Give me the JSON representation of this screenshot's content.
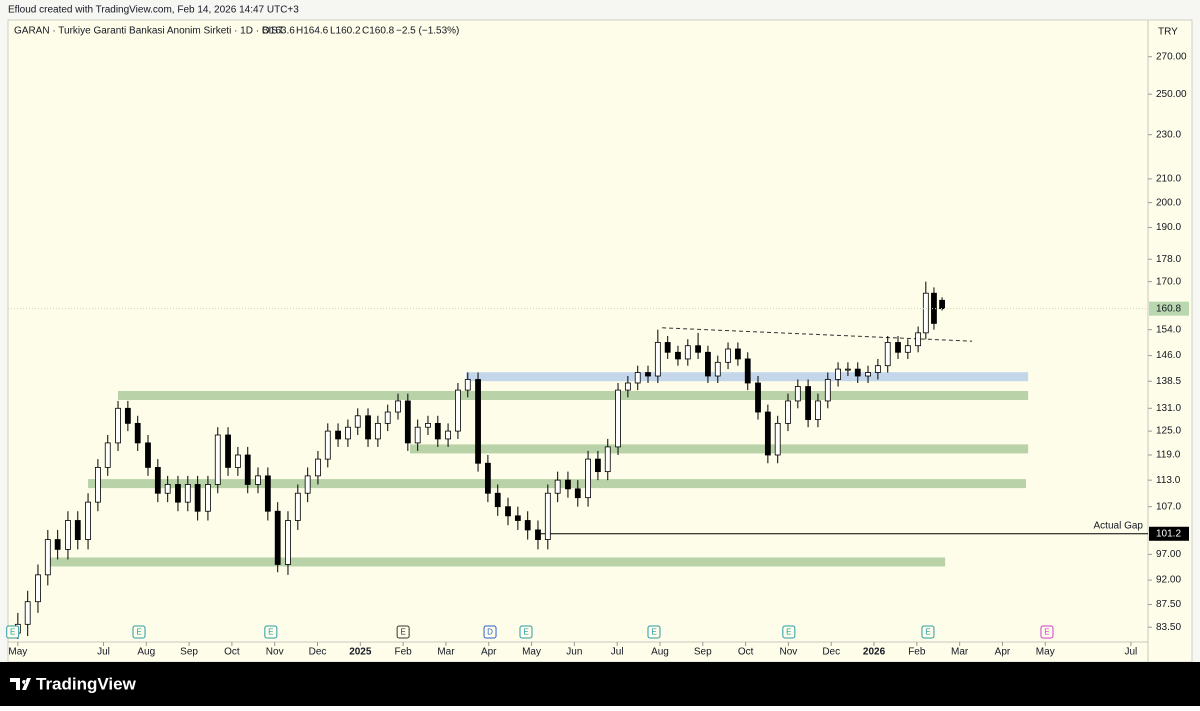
{
  "header": {
    "credit": "Efloud created with TradingView.com, Feb 14, 2026 14:47 UTC+3"
  },
  "footer": {
    "brand": "TradingView"
  },
  "chart_data": {
    "type": "candlestick",
    "legend": {
      "symbol": "GARAN · Turkiye Garanti Bankasi Anonim Sirketi · 1D · BIST",
      "open": "O163.6",
      "high": "H164.6",
      "low": "L160.2",
      "close": "C160.8",
      "change": "−2.5 (−1.53%)"
    },
    "currency": "TRY",
    "log_scale": true,
    "up_color": "#ffffff",
    "down_color": "#000000",
    "x": [
      0.0,
      0.23,
      0.47,
      0.7,
      0.93,
      1.17,
      1.4,
      1.64,
      1.87,
      2.1,
      2.34,
      2.57,
      2.8,
      3.04,
      3.27,
      3.5,
      3.74,
      3.97,
      4.2,
      4.44,
      4.67,
      4.91,
      5.14,
      5.37,
      5.61,
      5.84,
      6.07,
      6.31,
      6.54,
      6.77,
      7.01,
      7.24,
      7.48,
      7.71,
      7.94,
      8.18,
      8.41,
      8.64,
      8.88,
      9.11,
      9.34,
      9.58,
      9.81,
      10.05,
      10.28,
      10.51,
      10.75,
      10.98,
      11.21,
      11.45,
      11.68,
      11.91,
      12.15,
      12.38,
      12.61,
      12.85,
      13.08,
      13.32,
      13.55,
      13.78,
      14.02,
      14.25,
      14.48,
      14.72,
      14.95,
      15.18,
      15.42,
      15.65,
      15.89,
      16.12,
      16.35,
      16.59,
      16.82,
      17.05,
      17.29,
      17.52,
      17.75,
      17.99,
      18.22,
      18.46,
      18.69,
      18.92,
      19.16,
      19.39,
      19.62,
      19.86,
      20.09,
      20.32,
      20.56,
      20.79,
      21.03,
      21.21,
      21.4,
      21.59
    ],
    "open": [
      82.5,
      84,
      88,
      93,
      100,
      98,
      104,
      100,
      108,
      116,
      122,
      131,
      127,
      122,
      116,
      110,
      112,
      108,
      112,
      106,
      112,
      124,
      116,
      119,
      112,
      114,
      106,
      95,
      104,
      110,
      114,
      118,
      125,
      123,
      126,
      129,
      123,
      127,
      130,
      133,
      122,
      126,
      127,
      123,
      125,
      136,
      139,
      117,
      110,
      107,
      105,
      104,
      102,
      100,
      110,
      113,
      111,
      109,
      118,
      115,
      121,
      136,
      138,
      141,
      140,
      150,
      147,
      145,
      149,
      147,
      140,
      144,
      148,
      145,
      138,
      130,
      119,
      127,
      133,
      137,
      128,
      133,
      139,
      142,
      142,
      140,
      141,
      143,
      150,
      147,
      149,
      153,
      166,
      163.6
    ],
    "high": [
      86,
      90,
      95,
      102,
      102,
      106,
      106,
      110,
      118,
      124,
      133,
      133,
      129,
      124,
      118,
      114,
      114,
      114,
      114,
      114,
      126,
      126,
      121,
      121,
      116,
      116,
      108,
      106,
      112,
      116,
      120,
      127,
      127,
      128,
      131,
      131,
      129,
      132,
      135,
      135,
      128,
      129,
      129,
      127,
      138,
      141,
      141,
      119,
      112,
      109,
      107,
      106,
      104,
      112,
      115,
      115,
      113,
      120,
      120,
      123,
      138,
      140,
      143,
      143,
      154,
      152,
      149,
      151,
      153,
      149,
      146,
      150,
      150,
      147,
      140,
      132,
      129,
      135,
      139,
      139,
      135,
      141,
      144,
      144,
      144,
      143,
      145,
      152,
      152,
      151,
      155,
      170,
      168,
      164.6
    ],
    "low": [
      81.5,
      82,
      86,
      91,
      96,
      96,
      98,
      98,
      106,
      114,
      120,
      125,
      120,
      114,
      108,
      108,
      106,
      106,
      104,
      104,
      110,
      114,
      114,
      110,
      110,
      104,
      93.5,
      93,
      102,
      108,
      112,
      116,
      121,
      121,
      124,
      121,
      121,
      125,
      128,
      120,
      120,
      124,
      121,
      121,
      123,
      134,
      115,
      108,
      105,
      103,
      102,
      100,
      98,
      98,
      108,
      109,
      107,
      107,
      113,
      113,
      119,
      134,
      136,
      138,
      138,
      145,
      143,
      143,
      145,
      138,
      138,
      142,
      143,
      136,
      128,
      117,
      117,
      125,
      131,
      126,
      126,
      131,
      137,
      140,
      138,
      138,
      139,
      141,
      145,
      145,
      147,
      151,
      154,
      160.2
    ],
    "close": [
      84,
      88,
      93,
      100,
      98,
      104,
      100,
      108,
      116,
      122,
      131,
      127,
      122,
      116,
      110,
      112,
      108,
      112,
      106,
      112,
      124,
      116,
      119,
      112,
      114,
      106,
      95,
      104,
      110,
      114,
      118,
      125,
      123,
      126,
      129,
      123,
      127,
      130,
      133,
      122,
      126,
      127,
      123,
      125,
      136,
      139,
      117,
      110,
      107,
      105,
      104,
      102,
      100,
      110,
      113,
      111,
      109,
      118,
      115,
      121,
      136,
      138,
      141,
      140,
      150,
      147,
      145,
      149,
      147,
      140,
      144,
      148,
      145,
      138,
      130,
      119,
      127,
      133,
      137,
      128,
      133,
      139,
      142,
      142,
      140,
      141,
      143,
      150,
      147,
      149,
      153,
      166,
      156,
      160.8
    ],
    "xlim": [
      -0.23,
      26.4
    ],
    "ylim": [
      81,
      290
    ],
    "xticks": [
      {
        "value": 0,
        "label": "May"
      },
      {
        "value": 2,
        "label": "Jul"
      },
      {
        "value": 3,
        "label": "Aug"
      },
      {
        "value": 4,
        "label": "Sep"
      },
      {
        "value": 5,
        "label": "Oct"
      },
      {
        "value": 6,
        "label": "Nov"
      },
      {
        "value": 7,
        "label": "Dec"
      },
      {
        "value": 8,
        "label": "2025"
      },
      {
        "value": 9,
        "label": "Feb"
      },
      {
        "value": 10,
        "label": "Mar"
      },
      {
        "value": 11,
        "label": "Apr"
      },
      {
        "value": 12,
        "label": "May"
      },
      {
        "value": 13,
        "label": "Jun"
      },
      {
        "value": 14,
        "label": "Jul"
      },
      {
        "value": 15,
        "label": "Aug"
      },
      {
        "value": 16,
        "label": "Sep"
      },
      {
        "value": 17,
        "label": "Oct"
      },
      {
        "value": 18,
        "label": "Nov"
      },
      {
        "value": 19,
        "label": "Dec"
      },
      {
        "value": 20,
        "label": "2026"
      },
      {
        "value": 21,
        "label": "Feb"
      },
      {
        "value": 22,
        "label": "Mar"
      },
      {
        "value": 23,
        "label": "Apr"
      },
      {
        "value": 24,
        "label": "May"
      },
      {
        "value": 26,
        "label": "Jul"
      }
    ],
    "yticks": [
      {
        "value": 83.5,
        "label": "83.50"
      },
      {
        "value": 87.5,
        "label": "87.50"
      },
      {
        "value": 92,
        "label": "92.00"
      },
      {
        "value": 97,
        "label": "97.00"
      },
      {
        "value": 107,
        "label": "107.0"
      },
      {
        "value": 113,
        "label": "113.0"
      },
      {
        "value": 119,
        "label": "119.0"
      },
      {
        "value": 125,
        "label": "125.0"
      },
      {
        "value": 131,
        "label": "131.0"
      },
      {
        "value": 138.5,
        "label": "138.5"
      },
      {
        "value": 146,
        "label": "146.0"
      },
      {
        "value": 154,
        "label": "154.0"
      },
      {
        "value": 170,
        "label": "170.0"
      },
      {
        "value": 178,
        "label": "178.0"
      },
      {
        "value": 190,
        "label": "190.0"
      },
      {
        "value": 200,
        "label": "200.0"
      },
      {
        "value": 210,
        "label": "210.0"
      },
      {
        "value": 230,
        "label": "230.0"
      },
      {
        "value": 250,
        "label": "250.00"
      },
      {
        "value": 270,
        "label": "270.00"
      }
    ],
    "zones": [
      {
        "value": 139.8,
        "x": [
          10.47,
          23.6
        ],
        "color": "#c3d6ea"
      },
      {
        "value": 134.5,
        "x": [
          2.34,
          23.6
        ],
        "color": "#b9d2a8"
      },
      {
        "value": 120.5,
        "x": [
          9.16,
          23.6
        ],
        "color": "#b9d2a8"
      },
      {
        "value": 112.2,
        "x": [
          1.64,
          23.55
        ],
        "color": "#b9d2a8"
      },
      {
        "value": 95.5,
        "x": [
          0.7,
          21.66
        ],
        "color": "#b9d2a8"
      }
    ],
    "gap": {
      "label": "Actual Gap",
      "value": 101.2,
      "x": 12.2
    },
    "trendline": {
      "x": [
        15.05,
        22.29
      ],
      "y": [
        154.6,
        150.4
      ]
    },
    "events": [
      {
        "label": "E",
        "x": -0.12,
        "color": "#2a9aa8"
      },
      {
        "label": "E",
        "x": 2.83,
        "color": "#2a9aa8"
      },
      {
        "label": "E",
        "x": 5.91,
        "color": "#2a9aa8"
      },
      {
        "label": "E",
        "x": 9.0,
        "color": "#333333"
      },
      {
        "label": "D",
        "x": 11.03,
        "color": "#2f5fd0"
      },
      {
        "label": "E",
        "x": 11.87,
        "color": "#2a9aa8"
      },
      {
        "label": "E",
        "x": 14.86,
        "color": "#2a9aa8"
      },
      {
        "label": "E",
        "x": 18.01,
        "color": "#2a9aa8"
      },
      {
        "label": "E",
        "x": 21.26,
        "color": "#2a9aa8"
      },
      {
        "label": "E",
        "x": 24.04,
        "color": "#d040c8"
      }
    ]
  }
}
